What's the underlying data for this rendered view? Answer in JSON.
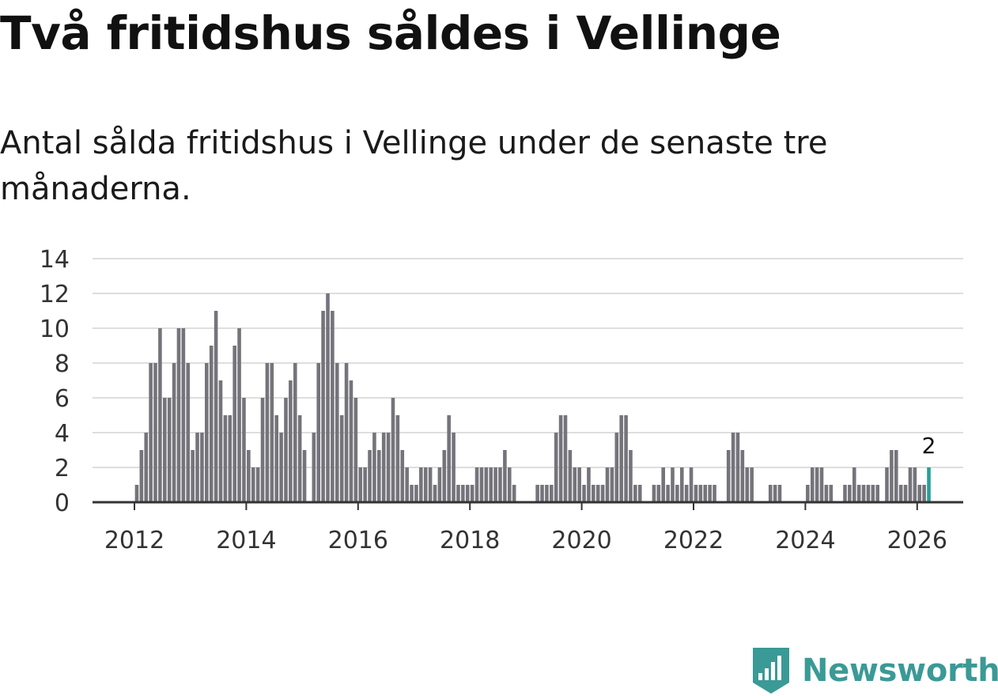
{
  "title": "Två fritidshus såldes i Vellinge",
  "subtitle": "Antal sålda fritidshus i Vellinge under de senaste tre månaderna.",
  "brand": {
    "name": "Newsworthy",
    "icon": "newsworthy-logo-icon"
  },
  "colors": {
    "bar": "#75747b",
    "highlight": "#2a9d98",
    "grid": "#dedede",
    "axis": "#333333"
  },
  "chart_data": {
    "type": "bar",
    "title": "Två fritidshus såldes i Vellinge",
    "subtitle": "Antal sålda fritidshus i Vellinge under de senaste tre månaderna.",
    "xlabel": "",
    "ylabel": "",
    "ylim": [
      0,
      14
    ],
    "yticks": [
      "0",
      "2",
      "4",
      "6",
      "8",
      "10",
      "12",
      "14"
    ],
    "xticks": [
      "2012",
      "2014",
      "2016",
      "2018",
      "2020",
      "2022",
      "2024",
      "2026"
    ],
    "x_start": "2012-01",
    "x_end": "2026-02",
    "grid": true,
    "legend": "none",
    "highlight_label": "2",
    "values": [
      1,
      3,
      4,
      8,
      8,
      10,
      6,
      6,
      8,
      10,
      10,
      8,
      3,
      4,
      4,
      8,
      9,
      11,
      7,
      5,
      5,
      9,
      10,
      6,
      3,
      2,
      2,
      6,
      8,
      8,
      5,
      4,
      6,
      7,
      8,
      5,
      3,
      0,
      4,
      8,
      11,
      12,
      11,
      8,
      5,
      8,
      7,
      6,
      2,
      2,
      3,
      4,
      3,
      4,
      4,
      6,
      5,
      3,
      2,
      1,
      1,
      2,
      2,
      2,
      1,
      2,
      3,
      5,
      4,
      1,
      1,
      1,
      1,
      2,
      2,
      2,
      2,
      2,
      2,
      3,
      2,
      1,
      0,
      0,
      0,
      0,
      1,
      1,
      1,
      1,
      4,
      5,
      5,
      3,
      2,
      2,
      1,
      2,
      1,
      1,
      1,
      2,
      2,
      4,
      5,
      5,
      3,
      1,
      1,
      0,
      0,
      1,
      1,
      2,
      1,
      2,
      1,
      2,
      1,
      2,
      1,
      1,
      1,
      1,
      1,
      0,
      0,
      3,
      4,
      4,
      3,
      2,
      2,
      0,
      0,
      0,
      1,
      1,
      1,
      0,
      0,
      0,
      0,
      0,
      1,
      2,
      2,
      2,
      1,
      1,
      0,
      0,
      1,
      1,
      2,
      1,
      1,
      1,
      1,
      1,
      0,
      2,
      3,
      3,
      1,
      1,
      2,
      2,
      1,
      1,
      2
    ]
  }
}
